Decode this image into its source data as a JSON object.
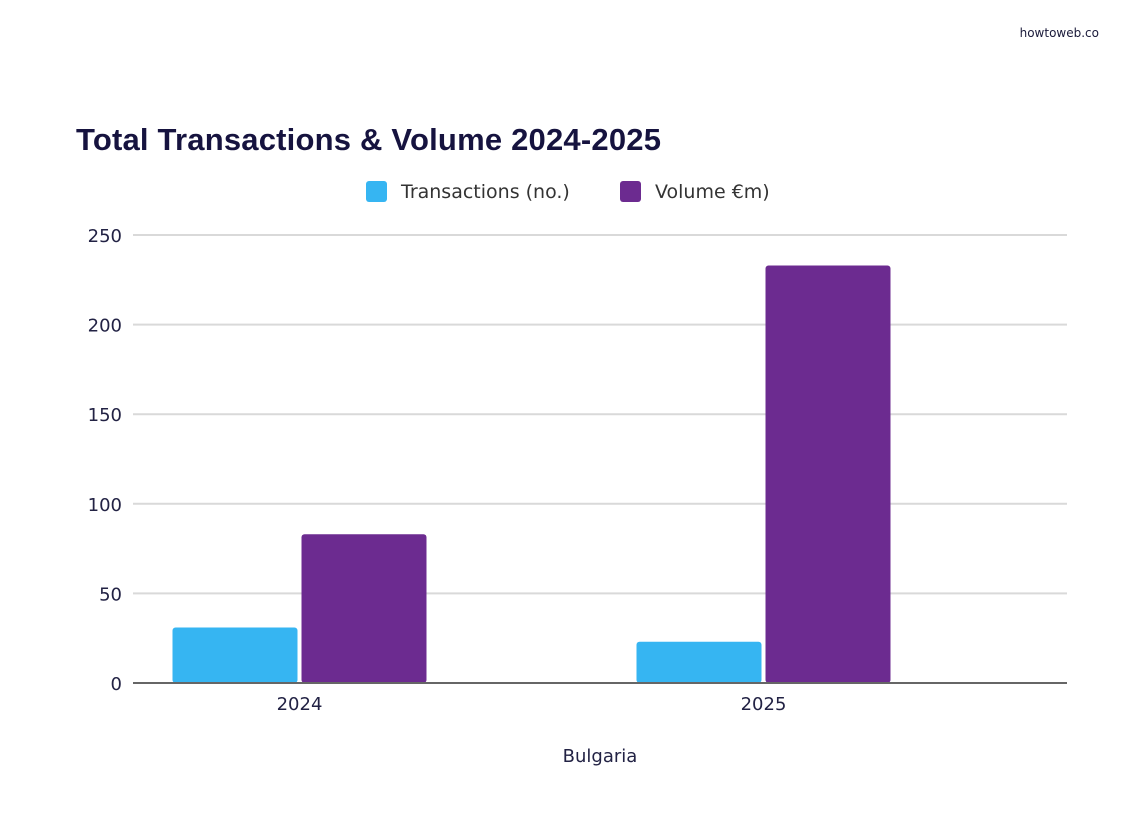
{
  "brand": "howtoweb.co",
  "chart_data": {
    "type": "bar",
    "title": "Total Transactions & Volume 2024-2025",
    "xlabel": "Bulgaria",
    "ylabel": "",
    "categories": [
      "2024",
      "2025"
    ],
    "series": [
      {
        "name": "Transactions (no.)",
        "color": "#36b5f2",
        "values": [
          31,
          23
        ]
      },
      {
        "name": "Volume €m)",
        "color": "#6c2b90",
        "values": [
          83,
          233
        ]
      }
    ],
    "ylim": [
      0,
      250
    ],
    "yticks": [
      0,
      50,
      100,
      150,
      200,
      250
    ],
    "grid": true,
    "legend": "top-center"
  }
}
